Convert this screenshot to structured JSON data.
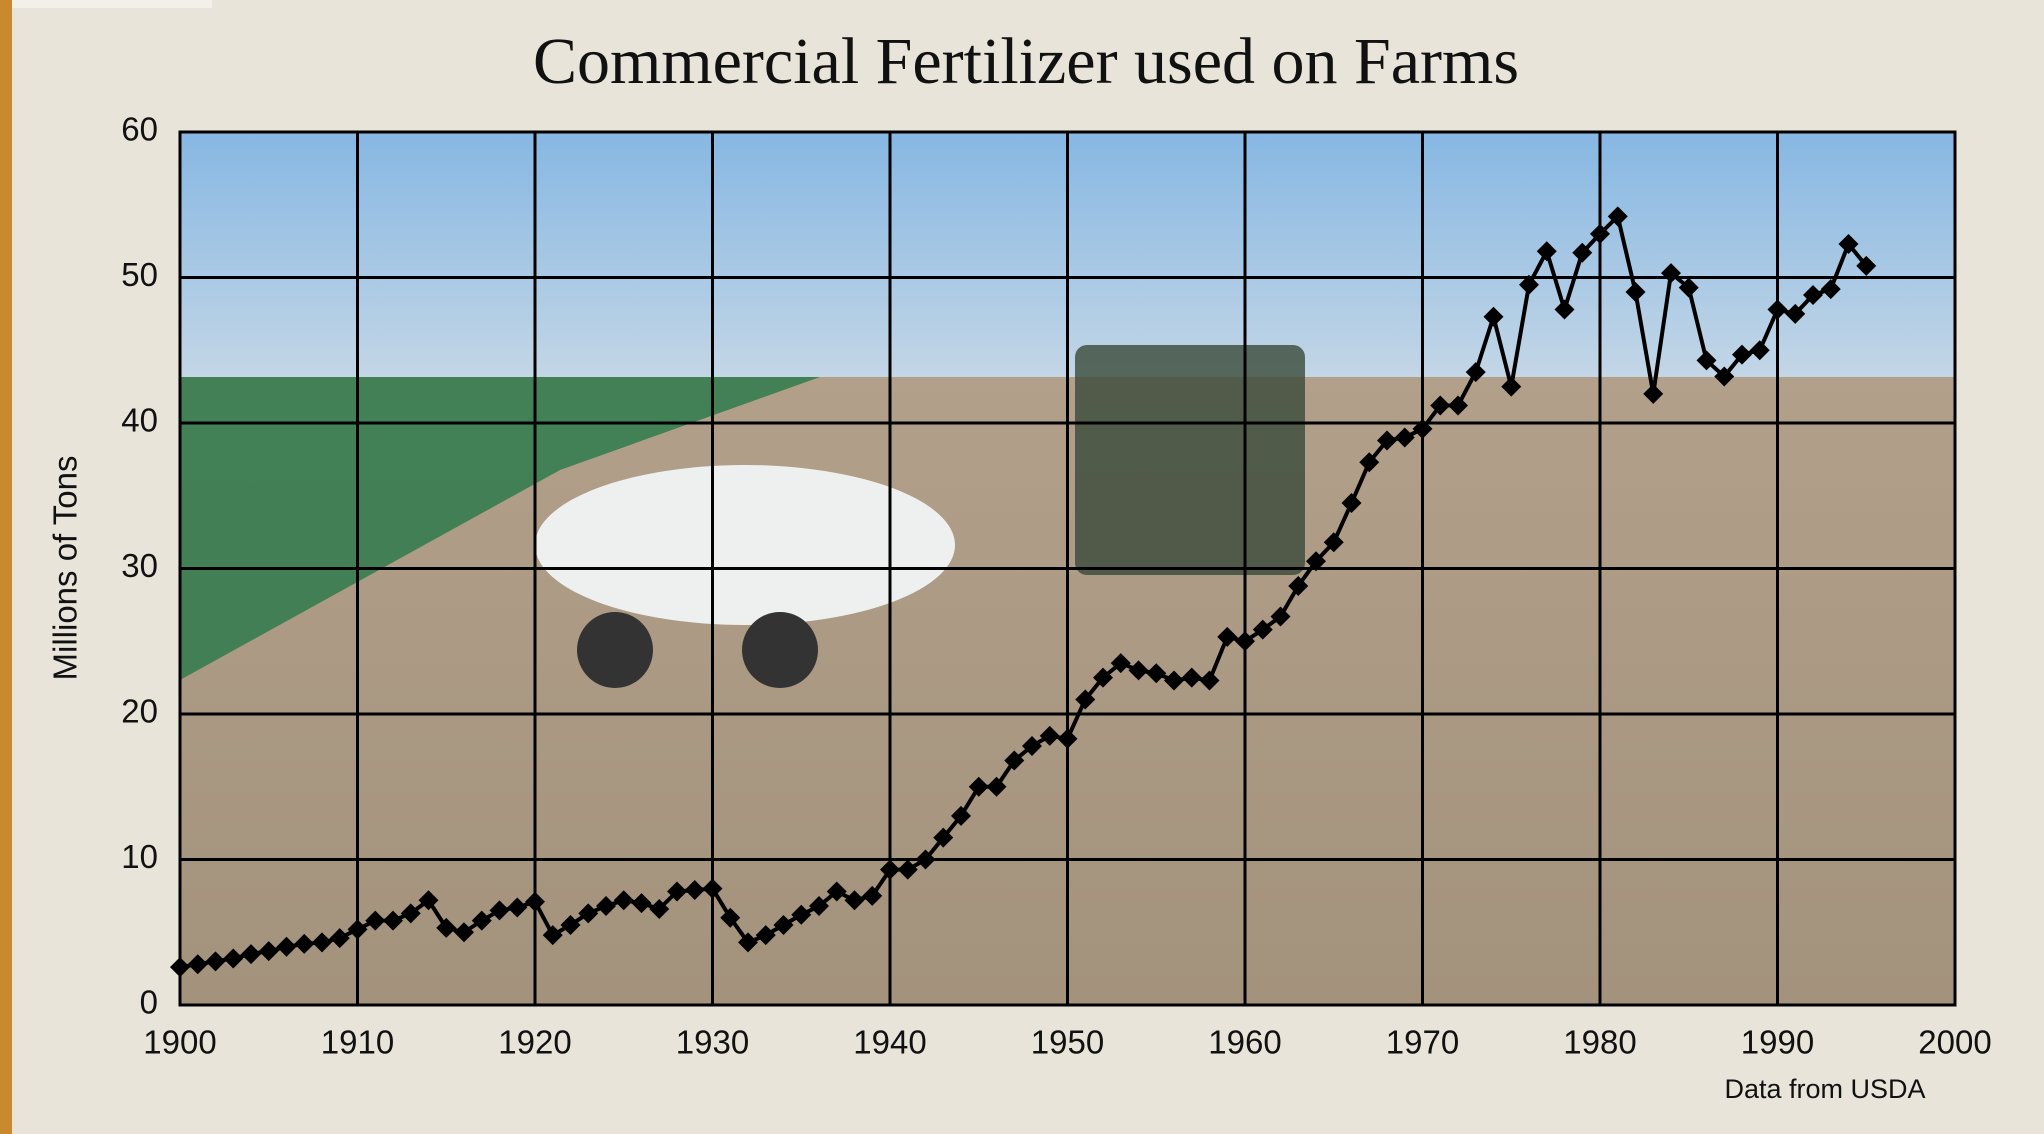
{
  "chart_data": {
    "type": "line",
    "title": "Commercial Fertilizer used on Farms",
    "y_label": "Millions of Tons",
    "note": "Data from USDA",
    "x": [
      1900,
      1901,
      1902,
      1903,
      1904,
      1905,
      1906,
      1907,
      1908,
      1909,
      1910,
      1911,
      1912,
      1913,
      1914,
      1915,
      1916,
      1917,
      1918,
      1919,
      1920,
      1921,
      1922,
      1923,
      1924,
      1925,
      1926,
      1927,
      1928,
      1929,
      1930,
      1931,
      1932,
      1933,
      1934,
      1935,
      1936,
      1937,
      1938,
      1939,
      1940,
      1941,
      1942,
      1943,
      1944,
      1945,
      1946,
      1947,
      1948,
      1949,
      1950,
      1951,
      1952,
      1953,
      1954,
      1955,
      1956,
      1957,
      1958,
      1959,
      1960,
      1961,
      1962,
      1963,
      1964,
      1965,
      1966,
      1967,
      1968,
      1969,
      1970,
      1971,
      1972,
      1973,
      1974,
      1975,
      1976,
      1977,
      1978,
      1979,
      1980,
      1981,
      1982,
      1983,
      1984,
      1985,
      1986,
      1987,
      1988,
      1989,
      1990,
      1991,
      1992,
      1993,
      1994,
      1995
    ],
    "values": [
      2.6,
      2.8,
      3.0,
      3.2,
      3.5,
      3.7,
      4.0,
      4.2,
      4.3,
      4.6,
      5.2,
      5.8,
      5.8,
      6.3,
      7.2,
      5.3,
      5.0,
      5.8,
      6.5,
      6.7,
      7.1,
      4.8,
      5.5,
      6.3,
      6.8,
      7.2,
      7.0,
      6.6,
      7.8,
      7.9,
      8.0,
      6.0,
      4.3,
      4.8,
      5.5,
      6.2,
      6.8,
      7.8,
      7.2,
      7.5,
      9.3,
      9.3,
      10.0,
      11.5,
      13.0,
      15.0,
      15.0,
      16.8,
      17.8,
      18.5,
      18.3,
      21.0,
      22.5,
      23.5,
      23.0,
      22.8,
      22.3,
      22.5,
      22.3,
      25.3,
      25.0,
      25.8,
      26.7,
      28.8,
      30.5,
      31.8,
      34.5,
      37.3,
      38.8,
      39.0,
      39.6,
      41.2,
      41.2,
      43.5,
      47.3,
      42.5,
      49.5,
      51.8,
      47.8,
      51.7,
      53.0,
      54.2,
      49.0,
      42.0,
      50.3,
      49.3,
      44.3,
      43.2,
      44.7,
      45.0,
      47.8,
      47.5,
      48.8,
      49.2,
      52.3,
      50.8
    ],
    "color": "#000000",
    "xlim": [
      1900,
      2000
    ],
    "xticks": [
      1900,
      1910,
      1920,
      1930,
      1940,
      1950,
      1960,
      1970,
      1980,
      1990,
      2000
    ],
    "ylim": [
      0,
      60
    ],
    "yticks": [
      0,
      10,
      20,
      30,
      40,
      50,
      60
    ],
    "grid": true
  }
}
